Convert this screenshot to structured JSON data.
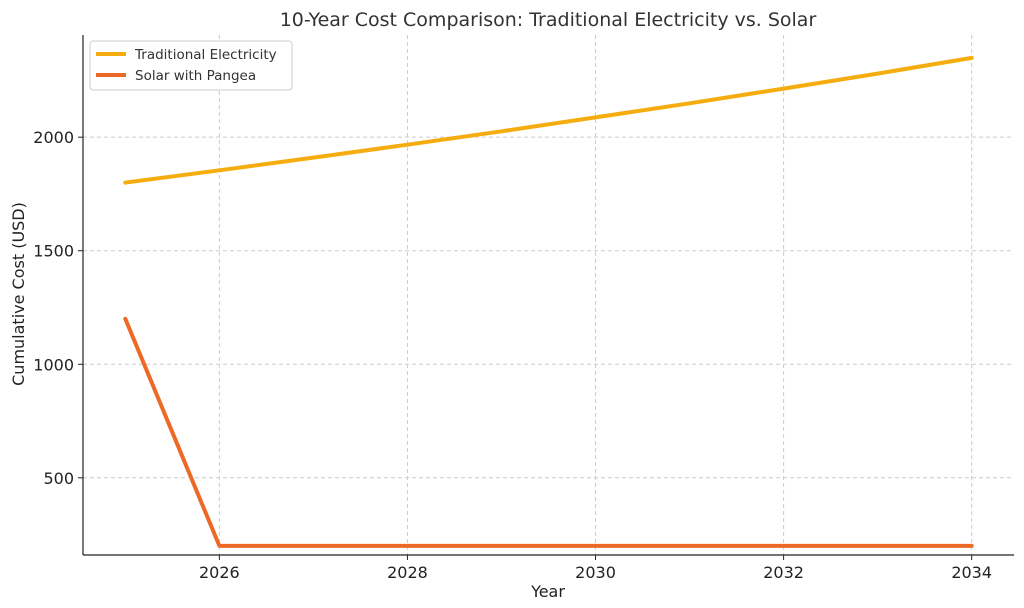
{
  "chart_data": {
    "type": "line",
    "title": "10-Year Cost Comparison: Traditional Electricity vs. Solar",
    "xlabel": "Year",
    "ylabel": "Cumulative Cost (USD)",
    "xlim": [
      2024.55,
      2034.45
    ],
    "ylim": [
      160,
      2450
    ],
    "xticks": [
      2026,
      2028,
      2030,
      2032,
      2034
    ],
    "yticks": [
      500,
      1000,
      1500,
      2000
    ],
    "grid": true,
    "legend_position": "top-left",
    "x": [
      2025,
      2026,
      2027,
      2028,
      2029,
      2030,
      2031,
      2032,
      2033,
      2034
    ],
    "series": [
      {
        "name": "Traditional Electricity",
        "color": "#f5ac0e",
        "values": [
          1800,
          1854,
          1910,
          1967,
          2026,
          2087,
          2149,
          2214,
          2280,
          2349
        ]
      },
      {
        "name": "Solar with Pangea",
        "color": "#ec6a25",
        "values": [
          1200,
          200,
          200,
          200,
          200,
          200,
          200,
          200,
          200,
          200
        ]
      }
    ]
  }
}
